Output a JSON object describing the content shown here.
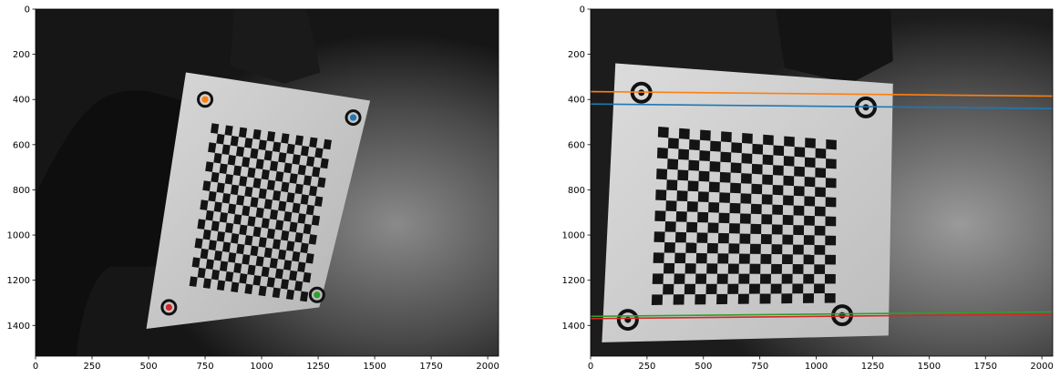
{
  "chart_data": [
    {
      "type": "image",
      "panel": "left",
      "title": "",
      "xlabel": "",
      "ylabel": "",
      "xlim": [
        0,
        2048
      ],
      "ylim": [
        1536,
        0
      ],
      "xticks": [
        "0",
        "250",
        "500",
        "750",
        "1000",
        "1250",
        "1500",
        "1750",
        "2000"
      ],
      "yticks": [
        "0",
        "200",
        "400",
        "600",
        "800",
        "1000",
        "1200",
        "1400"
      ],
      "grid": false,
      "board": {
        "corners": [
          [
            665,
            280
          ],
          [
            1480,
            405
          ],
          [
            1255,
            1320
          ],
          [
            490,
            1415
          ]
        ]
      },
      "checkerboard": {
        "corners": [
          [
            780,
            505
          ],
          [
            1310,
            580
          ],
          [
            1200,
            1295
          ],
          [
            680,
            1225
          ]
        ],
        "cols": 17,
        "rows": 17
      },
      "markers": [
        {
          "x": 750,
          "y": 400,
          "color": "#ff7f0e"
        },
        {
          "x": 1405,
          "y": 480,
          "color": "#1f77b4"
        },
        {
          "x": 1245,
          "y": 1265,
          "color": "#2ca02c"
        },
        {
          "x": 590,
          "y": 1320,
          "color": "#d62728"
        }
      ]
    },
    {
      "type": "image",
      "panel": "right",
      "title": "",
      "xlabel": "",
      "ylabel": "",
      "xlim": [
        0,
        2048
      ],
      "ylim": [
        1536,
        0
      ],
      "xticks": [
        "0",
        "250",
        "500",
        "750",
        "1000",
        "1250",
        "1500",
        "1750",
        "2000"
      ],
      "yticks": [
        "0",
        "200",
        "400",
        "600",
        "800",
        "1000",
        "1200",
        "1400"
      ],
      "grid": false,
      "board": {
        "corners": [
          [
            110,
            240
          ],
          [
            1340,
            330
          ],
          [
            1320,
            1445
          ],
          [
            50,
            1475
          ]
        ]
      },
      "checkerboard": {
        "corners": [
          [
            300,
            520
          ],
          [
            1090,
            580
          ],
          [
            1085,
            1300
          ],
          [
            270,
            1310
          ]
        ],
        "cols": 17,
        "rows": 17
      },
      "targets": [
        {
          "x": 225,
          "y": 370
        },
        {
          "x": 1220,
          "y": 435
        },
        {
          "x": 1115,
          "y": 1355
        },
        {
          "x": 165,
          "y": 1375
        }
      ],
      "epipolar_lines": [
        {
          "x": [
            0,
            2048
          ],
          "y": [
            365,
            385
          ],
          "color": "#ff7f0e"
        },
        {
          "x": [
            0,
            2048
          ],
          "y": [
            420,
            440
          ],
          "color": "#1f77b4"
        },
        {
          "x": [
            0,
            2048
          ],
          "y": [
            1360,
            1340
          ],
          "color": "#2ca02c"
        },
        {
          "x": [
            0,
            2048
          ],
          "y": [
            1370,
            1350
          ],
          "color": "#d62728"
        }
      ]
    }
  ]
}
